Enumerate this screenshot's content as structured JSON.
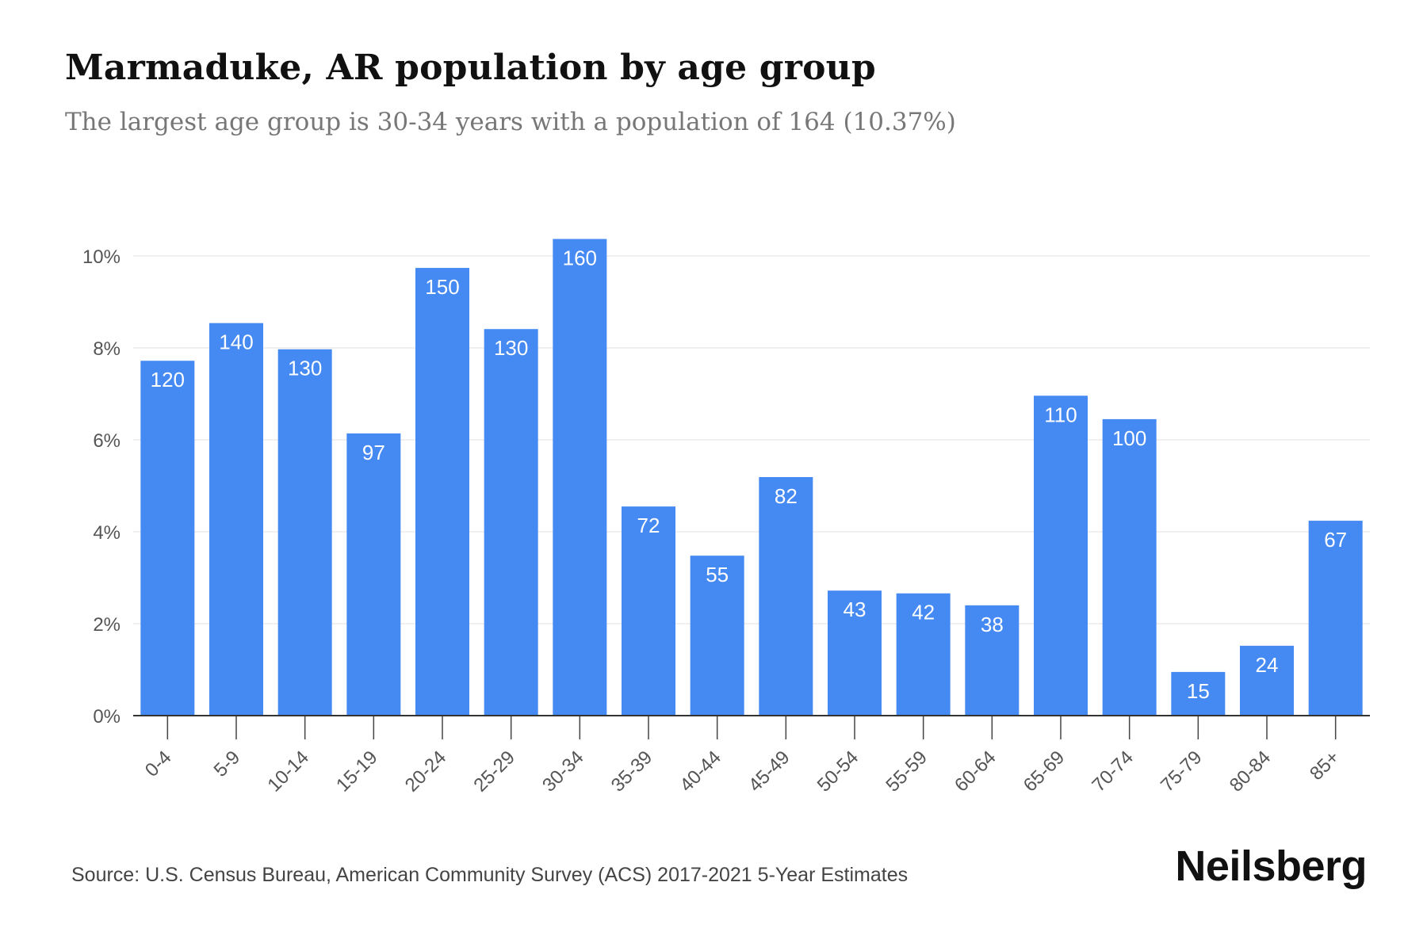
{
  "title": "Marmaduke, AR population by age group",
  "subtitle": "The largest age group is 30-34 years with a population of 164 (10.37%)",
  "source": "Source: U.S. Census Bureau, American Community Survey (ACS) 2017-2021 5-Year Estimates",
  "brand": "Neilsberg",
  "colors": {
    "bar": "#4589f3",
    "bar_label": "#ffffff",
    "axis_text": "#555555",
    "grid": "#ececec"
  },
  "chart_data": {
    "type": "bar",
    "categories": [
      "0-4",
      "5-9",
      "10-14",
      "15-19",
      "20-24",
      "25-29",
      "30-34",
      "35-39",
      "40-44",
      "45-49",
      "50-54",
      "55-59",
      "60-64",
      "65-69",
      "70-74",
      "75-79",
      "80-84",
      "85+"
    ],
    "values": [
      7.72,
      8.54,
      7.97,
      6.14,
      9.74,
      8.41,
      10.37,
      4.55,
      3.48,
      5.19,
      2.72,
      2.66,
      2.4,
      6.96,
      6.45,
      0.95,
      1.52,
      4.24
    ],
    "data_labels": [
      "120",
      "140",
      "130",
      "97",
      "150",
      "130",
      "160",
      "72",
      "55",
      "82",
      "43",
      "42",
      "38",
      "110",
      "100",
      "15",
      "24",
      "67"
    ],
    "y_ticks": [
      "0%",
      "2%",
      "4%",
      "6%",
      "8%",
      "10%"
    ],
    "y_tick_values": [
      0,
      2,
      4,
      6,
      8,
      10
    ],
    "ylim": [
      0,
      10
    ],
    "xlabel": "",
    "ylabel": "",
    "grid": true,
    "legend": "none"
  }
}
